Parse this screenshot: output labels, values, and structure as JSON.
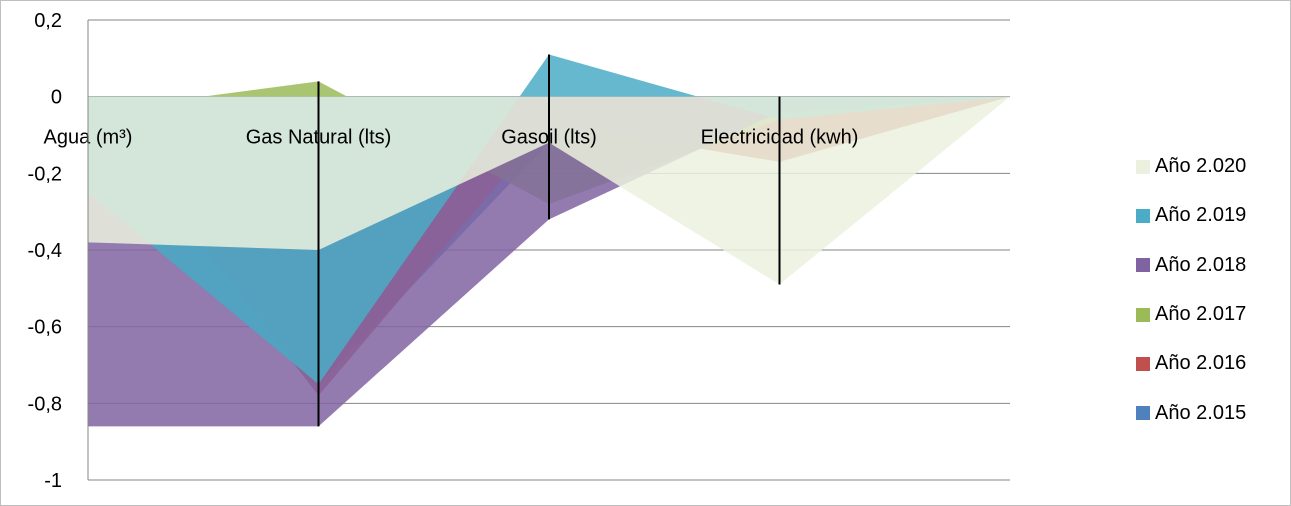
{
  "chart_data": {
    "type": "area",
    "title": "",
    "xlabel": "",
    "ylabel": "",
    "categories": [
      "Agua (m³)",
      "Gas Natural (lts)",
      "Gasoil (lts)",
      "Electricidad (kwh)",
      ""
    ],
    "ylim": [
      -1,
      0.2
    ],
    "yticks": [
      "0,2",
      "0",
      "-0,2",
      "-0,4",
      "-0,6",
      "-0,8",
      "-1"
    ],
    "grid": true,
    "legend_position": "right",
    "series": [
      {
        "name": "Año 2.015",
        "color": "#4f81bd",
        "values": [
          -0.25,
          -0.75,
          -0.12,
          -0.03,
          0
        ]
      },
      {
        "name": "Año 2.016",
        "color": "#c0504d",
        "values": [
          0,
          -0.78,
          -0.07,
          -0.17,
          0
        ]
      },
      {
        "name": "Año 2.017",
        "color": "#9bbb59",
        "values": [
          -0.04,
          0.04,
          -0.28,
          -0.06,
          0
        ]
      },
      {
        "name": "Año 2.018",
        "color": "#8064a2",
        "values": [
          -0.86,
          -0.86,
          -0.32,
          -0.04,
          0
        ]
      },
      {
        "name": "Año 2.019",
        "color": "#4bacc6",
        "values": [
          -0.25,
          -0.75,
          0.11,
          -0.06,
          0
        ]
      },
      {
        "name": "Año 2.020",
        "color": "#ebf1de",
        "values": [
          -0.38,
          -0.4,
          -0.12,
          -0.49,
          0
        ]
      }
    ],
    "legend_order": [
      "Año 2.020",
      "Año 2.019",
      "Año 2.018",
      "Año 2.017",
      "Año 2.016",
      "Año 2.015"
    ]
  }
}
